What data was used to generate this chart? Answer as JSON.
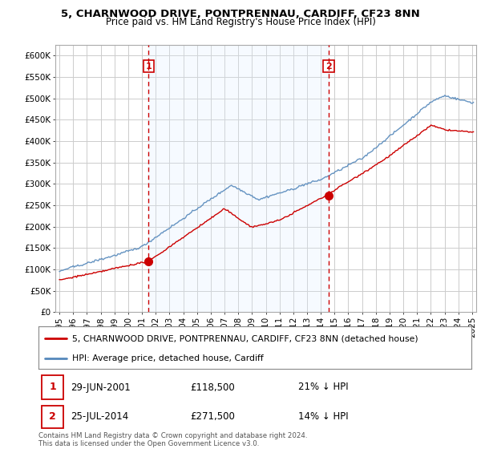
{
  "title": "5, CHARNWOOD DRIVE, PONTPRENNAU, CARDIFF, CF23 8NN",
  "subtitle": "Price paid vs. HM Land Registry's House Price Index (HPI)",
  "ylabel_values": [
    "£0",
    "£50K",
    "£100K",
    "£150K",
    "£200K",
    "£250K",
    "£300K",
    "£350K",
    "£400K",
    "£450K",
    "£500K",
    "£550K",
    "£600K"
  ],
  "ylim": [
    0,
    620000
  ],
  "xlim_start": 1994.7,
  "xlim_end": 2025.3,
  "sale1_x": 2001.49,
  "sale1_y": 118500,
  "sale1_label": "1",
  "sale1_date": "29-JUN-2001",
  "sale1_price": "£118,500",
  "sale1_hpi": "21% ↓ HPI",
  "sale2_x": 2014.57,
  "sale2_y": 271500,
  "sale2_label": "2",
  "sale2_date": "25-JUL-2014",
  "sale2_price": "£271,500",
  "sale2_hpi": "14% ↓ HPI",
  "line_color_property": "#cc0000",
  "line_color_hpi": "#5588bb",
  "vline_color": "#cc0000",
  "marker_color": "#cc0000",
  "shade_color": "#ddeeff",
  "legend_label_property": "5, CHARNWOOD DRIVE, PONTPRENNAU, CARDIFF, CF23 8NN (detached house)",
  "legend_label_hpi": "HPI: Average price, detached house, Cardiff",
  "footnote": "Contains HM Land Registry data © Crown copyright and database right 2024.\nThis data is licensed under the Open Government Licence v3.0.",
  "background_color": "#ffffff",
  "grid_color": "#cccccc",
  "title_fontsize": 9.5,
  "subtitle_fontsize": 8.5,
  "tick_fontsize": 7.5,
  "legend_fontsize": 8
}
